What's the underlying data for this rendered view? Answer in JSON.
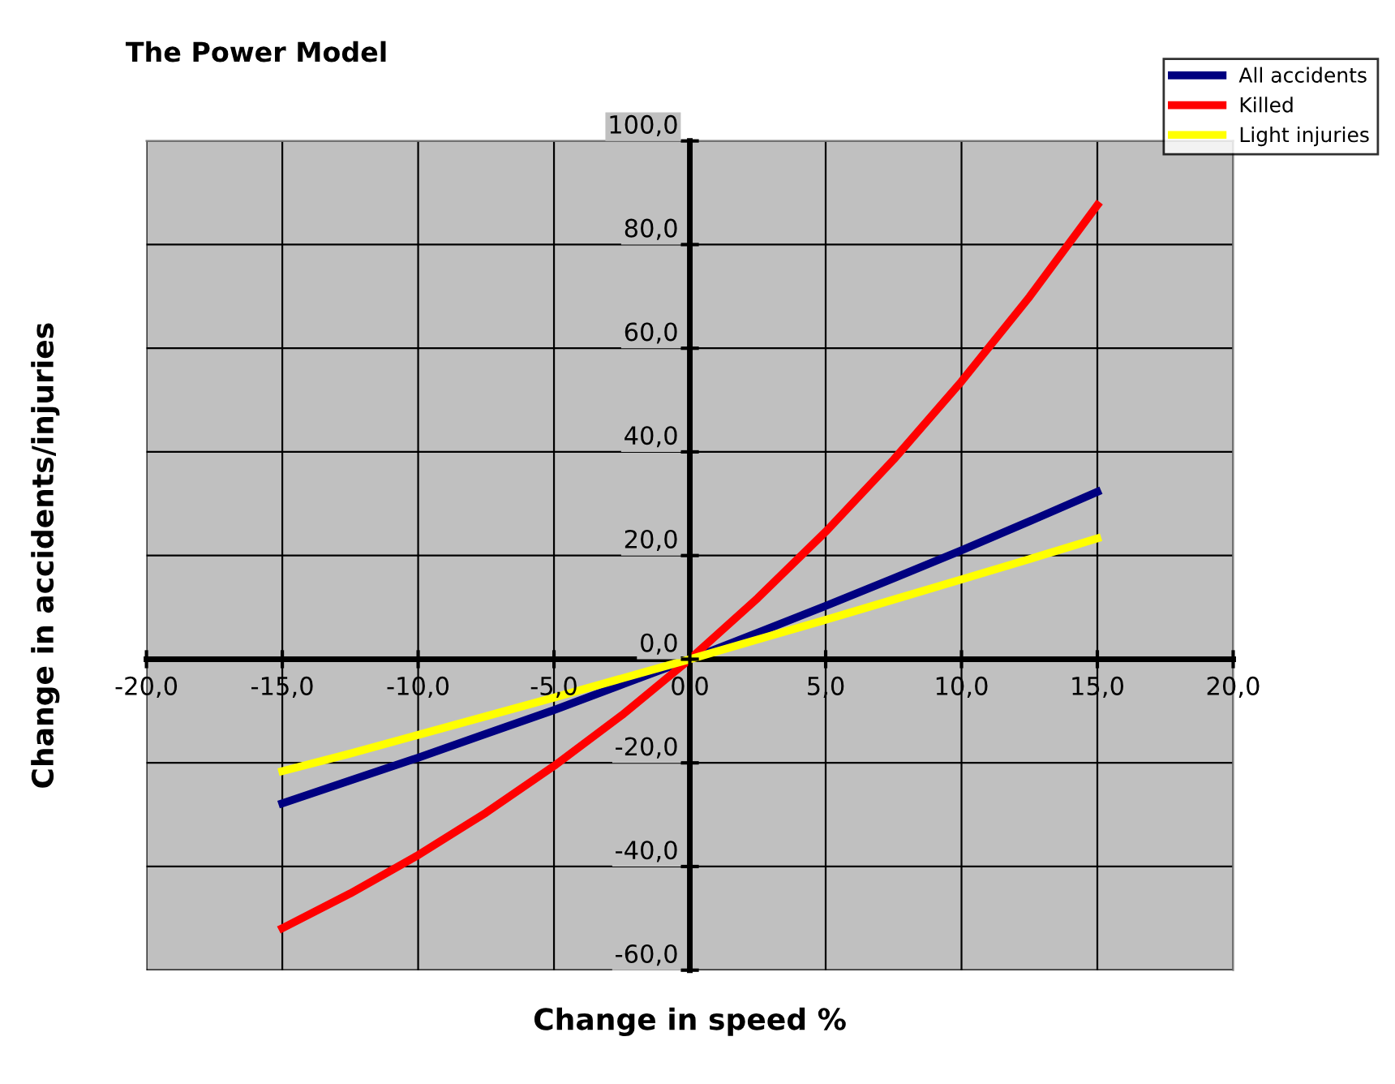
{
  "chart_data": {
    "type": "line",
    "title": "The Power Model",
    "xlabel": "Change in speed %",
    "ylabel": "Change in accidents/injuries",
    "x": [
      -15,
      -12.5,
      -10,
      -7.5,
      -5,
      -2.5,
      0,
      2.5,
      5,
      7.5,
      10,
      12.5,
      15
    ],
    "series": [
      {
        "name": "All accidents",
        "color": "#000080",
        "values": [
          -27.8,
          -23.4,
          -19.0,
          -14.4,
          -9.8,
          -4.9,
          0,
          5.1,
          10.3,
          15.6,
          21.0,
          26.6,
          32.3
        ]
      },
      {
        "name": "Killed",
        "color": "#ff0000",
        "values": [
          -51.9,
          -45.2,
          -37.8,
          -29.6,
          -20.6,
          -10.8,
          0,
          11.8,
          24.6,
          38.5,
          53.6,
          69.9,
          87.6
        ]
      },
      {
        "name": "Light injuries",
        "color": "#ffff00",
        "values": [
          -21.6,
          -18.2,
          -14.6,
          -11.0,
          -7.4,
          -3.7,
          0,
          3.8,
          7.6,
          11.5,
          15.4,
          19.3,
          23.3
        ]
      }
    ],
    "xlim": [
      -20,
      20
    ],
    "ylim": [
      -60,
      100
    ],
    "xticks": [
      {
        "value": -20,
        "label": "-20,0"
      },
      {
        "value": -15,
        "label": "-15,0"
      },
      {
        "value": -10,
        "label": "-10,0"
      },
      {
        "value": -5,
        "label": "-5,0"
      },
      {
        "value": 0,
        "label": "0,0"
      },
      {
        "value": 5,
        "label": "5,0"
      },
      {
        "value": 10,
        "label": "10,0"
      },
      {
        "value": 15,
        "label": "15,0"
      },
      {
        "value": 20,
        "label": "20,0"
      }
    ],
    "yticks": [
      {
        "value": -60,
        "label": "-60,0"
      },
      {
        "value": -40,
        "label": "-40,0"
      },
      {
        "value": -20,
        "label": "-20,0"
      },
      {
        "value": 0,
        "label": "0,0"
      },
      {
        "value": 20,
        "label": "20,0"
      },
      {
        "value": 40,
        "label": "40,0"
      },
      {
        "value": 60,
        "label": "60,0"
      },
      {
        "value": 80,
        "label": "80,0"
      },
      {
        "value": 100,
        "label": "100,0"
      }
    ],
    "grid": true,
    "legend": "top right",
    "marker": "none",
    "line_style": "solid"
  }
}
